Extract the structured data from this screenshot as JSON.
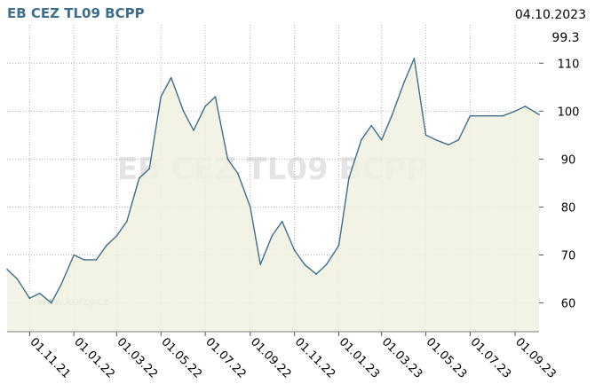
{
  "title": "EB CEZ TL09 BCPP",
  "date": "04.10.2023",
  "last_value_label": "99.3",
  "watermark": "EB CEZ TL09 BCPP",
  "site": "www.kurzy.cz",
  "colors": {
    "line": "#3d6f8d",
    "fill": "#f0f1e1",
    "grid": "#b5b5b5",
    "title": "#3d6f8d"
  },
  "chart_data": {
    "type": "area",
    "title": "EB CEZ TL09 BCPP",
    "xlabel": "",
    "ylabel": "",
    "ylim": [
      54,
      118
    ],
    "y_ticks": [
      60,
      70,
      80,
      90,
      100,
      110
    ],
    "x_ticks": [
      "01.11.21",
      "01.01.22",
      "01.03.22",
      "01.05.22",
      "01.07.22",
      "01.09.22",
      "01.11.22",
      "01.01.23",
      "01.03.23",
      "01.05.23",
      "01.07.23",
      "01.09.23"
    ],
    "grid": true,
    "x": [
      "01.10.21",
      "15.10.21",
      "01.11.21",
      "15.11.21",
      "01.12.21",
      "15.12.21",
      "01.01.22",
      "15.01.22",
      "01.02.22",
      "15.02.22",
      "01.03.22",
      "15.03.22",
      "01.04.22",
      "15.04.22",
      "01.05.22",
      "15.05.22",
      "01.06.22",
      "15.06.22",
      "01.07.22",
      "15.07.22",
      "01.08.22",
      "15.08.22",
      "01.09.22",
      "15.09.22",
      "01.10.22",
      "15.10.22",
      "01.11.22",
      "15.11.22",
      "01.12.22",
      "15.12.22",
      "01.01.23",
      "15.01.23",
      "01.02.23",
      "15.02.23",
      "01.03.23",
      "15.03.23",
      "01.04.23",
      "15.04.23",
      "01.05.23",
      "15.05.23",
      "01.06.23",
      "15.06.23",
      "01.07.23",
      "15.07.23",
      "01.08.23",
      "15.08.23",
      "01.09.23",
      "15.09.23",
      "04.10.23"
    ],
    "values": [
      67,
      65,
      61,
      62,
      60,
      64,
      70,
      69,
      69,
      72,
      74,
      77,
      86,
      88,
      103,
      107,
      100,
      96,
      101,
      103,
      90,
      87,
      80,
      68,
      74,
      77,
      71,
      68,
      66,
      68,
      72,
      86,
      94,
      97,
      94,
      99,
      106,
      111,
      95,
      94,
      93,
      94,
      99,
      99,
      99,
      99,
      100,
      101,
      99.3
    ]
  }
}
